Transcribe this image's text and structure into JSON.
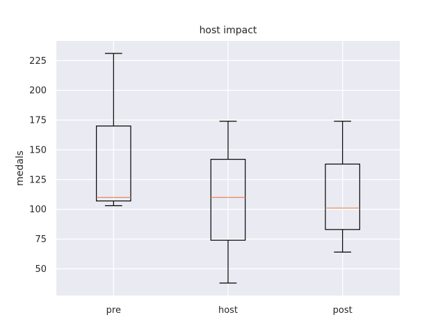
{
  "chart_data": {
    "type": "box",
    "title": "host impact",
    "xlabel": "",
    "ylabel": "medals",
    "categories": [
      "pre",
      "host",
      "post"
    ],
    "boxes": [
      {
        "label": "pre",
        "whisker_low": 103,
        "q1": 107,
        "median": 110,
        "q3": 170,
        "whisker_high": 231
      },
      {
        "label": "host",
        "whisker_low": 38,
        "q1": 74,
        "median": 110,
        "q3": 142,
        "whisker_high": 174
      },
      {
        "label": "post",
        "whisker_low": 64,
        "q1": 83,
        "median": 101,
        "q3": 138,
        "whisker_high": 174
      }
    ],
    "yticks": [
      50,
      75,
      100,
      125,
      150,
      175,
      200,
      225
    ],
    "ylim": [
      27.5,
      241.5
    ],
    "grid": true,
    "colors": {
      "background": "#EAEAF2",
      "grid": "#FFFFFF",
      "box": "#000000",
      "median": "#E8875A"
    }
  }
}
